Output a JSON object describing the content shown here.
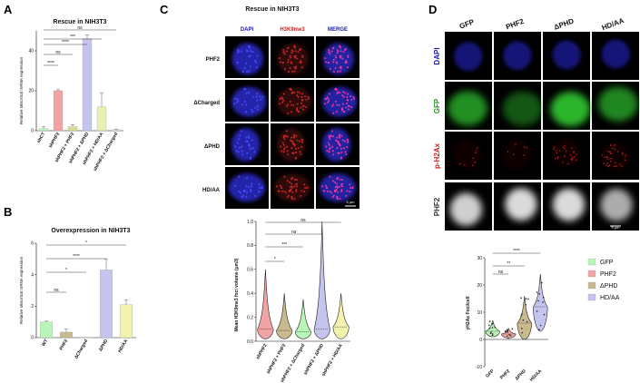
{
  "panel_labels": [
    "A",
    "B",
    "C",
    "D"
  ],
  "colors": {
    "gfp": "#b9f5b9",
    "phf2": "#f2a3a3",
    "dphd": "#c9b98f",
    "hdaa": "#c4c4ee",
    "dapi": "#2828b4",
    "h3k9": "#dc2828",
    "gfp_text": "#1a9e1a",
    "ph2ax_text": "#c81e1e",
    "merge_text": "#1a1ab4"
  },
  "chart_data": [
    {
      "id": "A",
      "type": "bar",
      "title": "Rescue in NIH3T3",
      "ylabel": "Relative MinorSat mRNA expression",
      "xlabel": "",
      "ylim": [
        0,
        50
      ],
      "yticks": [
        "0",
        "20",
        "40"
      ],
      "categories": [
        "shCT",
        "shPHF2",
        "shPHF2 + PHF2",
        "shPHF2 + ΔPHD",
        "shPHF2 + HD/AA",
        "shPHF2 + ΔCharged"
      ],
      "values": [
        1,
        20,
        2,
        46,
        12,
        0.5
      ],
      "errors": [
        1,
        0.5,
        1,
        2,
        7,
        0.3
      ],
      "bar_colors": [
        "#b9f5b9",
        "#f2a3a3",
        "#dcdc90",
        "#c4c4ee",
        "#e6f0b0",
        "#dcefc8"
      ],
      "significance": [
        "****",
        "ns",
        "****",
        "***",
        "ns"
      ]
    },
    {
      "id": "B",
      "type": "bar",
      "title": "Overexpression in NIH3T3",
      "ylabel": "Relative MinorSat mRNA expression",
      "xlabel": "",
      "ylim": [
        0,
        6
      ],
      "yticks": [
        "0",
        "2",
        "4",
        "6"
      ],
      "categories": [
        "WT",
        "PHF2",
        "ΔCharged",
        "ΔPHD",
        "HD/AA"
      ],
      "values": [
        1,
        0.35,
        0,
        4.3,
        2.1
      ],
      "errors": [
        0.05,
        0.2,
        0,
        0.7,
        0.3
      ],
      "bar_colors": [
        "#b9f5b9",
        "#c9b98f",
        "#ffffff",
        "#c4c4ee",
        "#f2f2b0"
      ],
      "significance": [
        "ns",
        "*",
        "****",
        "*"
      ]
    },
    {
      "id": "C-violin",
      "type": "violin",
      "ylabel": "Mean H3K9me3 foci volume (µm3)",
      "xlabel": "",
      "ylim": [
        0,
        1.0
      ],
      "yticks": [
        "0.0",
        "0.2",
        "0.4",
        "0.6",
        "0.8",
        "1.0"
      ],
      "categories": [
        "shPHF2",
        "shPHF2 + PHF2",
        "shPHF2 + ΔCharged",
        "shPHF2 + ΔPHD",
        "shPHF2 + HD/AA"
      ],
      "medians": [
        0.1,
        0.09,
        0.08,
        0.1,
        0.12
      ],
      "max": [
        0.6,
        0.4,
        0.35,
        1.0,
        0.4
      ],
      "colors": [
        "#f2a3a3",
        "#c9b98f",
        "#b9f5b9",
        "#c4c4ee",
        "#f2f2b0"
      ],
      "significance": [
        "*",
        "***",
        "ns",
        "ns"
      ]
    },
    {
      "id": "D-violin",
      "type": "violin",
      "ylabel": "γH2Ax Foci/cell",
      "xlabel": "",
      "ylim": [
        -10,
        30
      ],
      "yticks": [
        "-10",
        "0",
        "10",
        "20",
        "30"
      ],
      "categories": [
        "GFP",
        "PHF2",
        "ΔPHD",
        "HD/AA"
      ],
      "medians": [
        3,
        2,
        6,
        12
      ],
      "max": [
        7,
        4,
        16,
        24
      ],
      "min": [
        1,
        0.5,
        0,
        3
      ],
      "colors": [
        "#b9f5b9",
        "#f2a3a3",
        "#c9b98f",
        "#c4c4ee"
      ],
      "significance": [
        "ns",
        "**",
        "****"
      ],
      "legend": [
        "GFP",
        "PHF2",
        "ΔPHD",
        "HD/AA"
      ]
    }
  ],
  "panelC": {
    "title": "Rescue in NIH3T3",
    "columns": [
      "DAPI",
      "H3K9me3",
      "MERGE"
    ],
    "rows": [
      "PHF2",
      "ΔCharged",
      "ΔPHD",
      "HD/AA"
    ],
    "scale_bar": "5 µm"
  },
  "panelD": {
    "columns": [
      "GFP",
      "PHF2",
      "ΔPHD",
      "HD/AA"
    ],
    "rows": [
      "DAPI",
      "GFP",
      "p-H2Ax",
      "PHF2"
    ],
    "scale_bar": "5 µm"
  }
}
